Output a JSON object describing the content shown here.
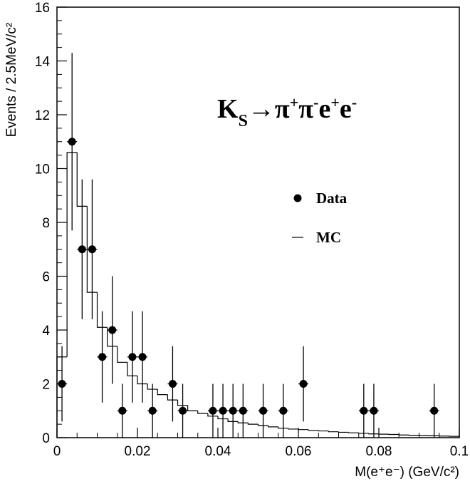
{
  "chart_data": {
    "type": "histogram",
    "annotation": [
      "K",
      "S",
      "→π",
      "+",
      "π",
      "-",
      "e",
      "+",
      "e",
      "-"
    ],
    "x_label": "M(e⁺e⁻)  (GeV/c²)",
    "y_label": "Events / 2.5MeV/c²",
    "xlim": [
      0,
      0.1
    ],
    "xticks": [
      0,
      0.02,
      0.04,
      0.06,
      0.08,
      0.1
    ],
    "ylim": [
      0,
      16
    ],
    "yticks": [
      0,
      2,
      4,
      6,
      8,
      10,
      12,
      14,
      16
    ],
    "series": [
      {
        "name": "Data",
        "type": "scatter",
        "color": "#000000",
        "x": [
          0.00125,
          0.00375,
          0.00625,
          0.00875,
          0.01125,
          0.01375,
          0.01625,
          0.01875,
          0.02125,
          0.02375,
          0.02875,
          0.03125,
          0.03875,
          0.04125,
          0.04375,
          0.04625,
          0.05125,
          0.05625,
          0.06125,
          0.07625,
          0.07875,
          0.09375
        ],
        "values": [
          2,
          11,
          7,
          7,
          3,
          4,
          1,
          3,
          3,
          1,
          2,
          1,
          1,
          1,
          1,
          1,
          1,
          1,
          2,
          1,
          1,
          1
        ],
        "yerr": [
          1.4,
          3.3,
          2.6,
          2.6,
          1.7,
          2.0,
          1.0,
          1.7,
          1.7,
          1.0,
          1.4,
          1.0,
          1.0,
          1.0,
          1.0,
          1.0,
          1.0,
          1.0,
          1.4,
          1.0,
          1.0,
          1.0
        ]
      },
      {
        "name": "MC",
        "type": "step",
        "color": "#000000",
        "bins": [
          0,
          0.0025,
          0.005,
          0.0075,
          0.01,
          0.0125,
          0.015,
          0.0175,
          0.02,
          0.0225,
          0.025,
          0.0275,
          0.03,
          0.0325,
          0.035,
          0.0375,
          0.04,
          0.0425,
          0.045,
          0.0475,
          0.05,
          0.0525,
          0.055,
          0.0575,
          0.06,
          0.0625,
          0.065,
          0.0675,
          0.07,
          0.0725,
          0.075,
          0.0775,
          0.08,
          0.0825,
          0.085,
          0.0875,
          0.09,
          0.0925,
          0.095,
          0.0975,
          0.1
        ],
        "values": [
          3.0,
          10.6,
          8.6,
          5.4,
          4.1,
          3.4,
          2.8,
          2.3,
          2.0,
          1.8,
          1.6,
          1.4,
          1.2,
          1.0,
          0.9,
          0.8,
          0.7,
          0.6,
          0.55,
          0.5,
          0.45,
          0.4,
          0.35,
          0.32,
          0.3,
          0.27,
          0.25,
          0.22,
          0.2,
          0.18,
          0.16,
          0.14,
          0.13,
          0.12,
          0.1,
          0.09,
          0.08,
          0.07,
          0.06,
          0.05
        ]
      }
    ]
  }
}
